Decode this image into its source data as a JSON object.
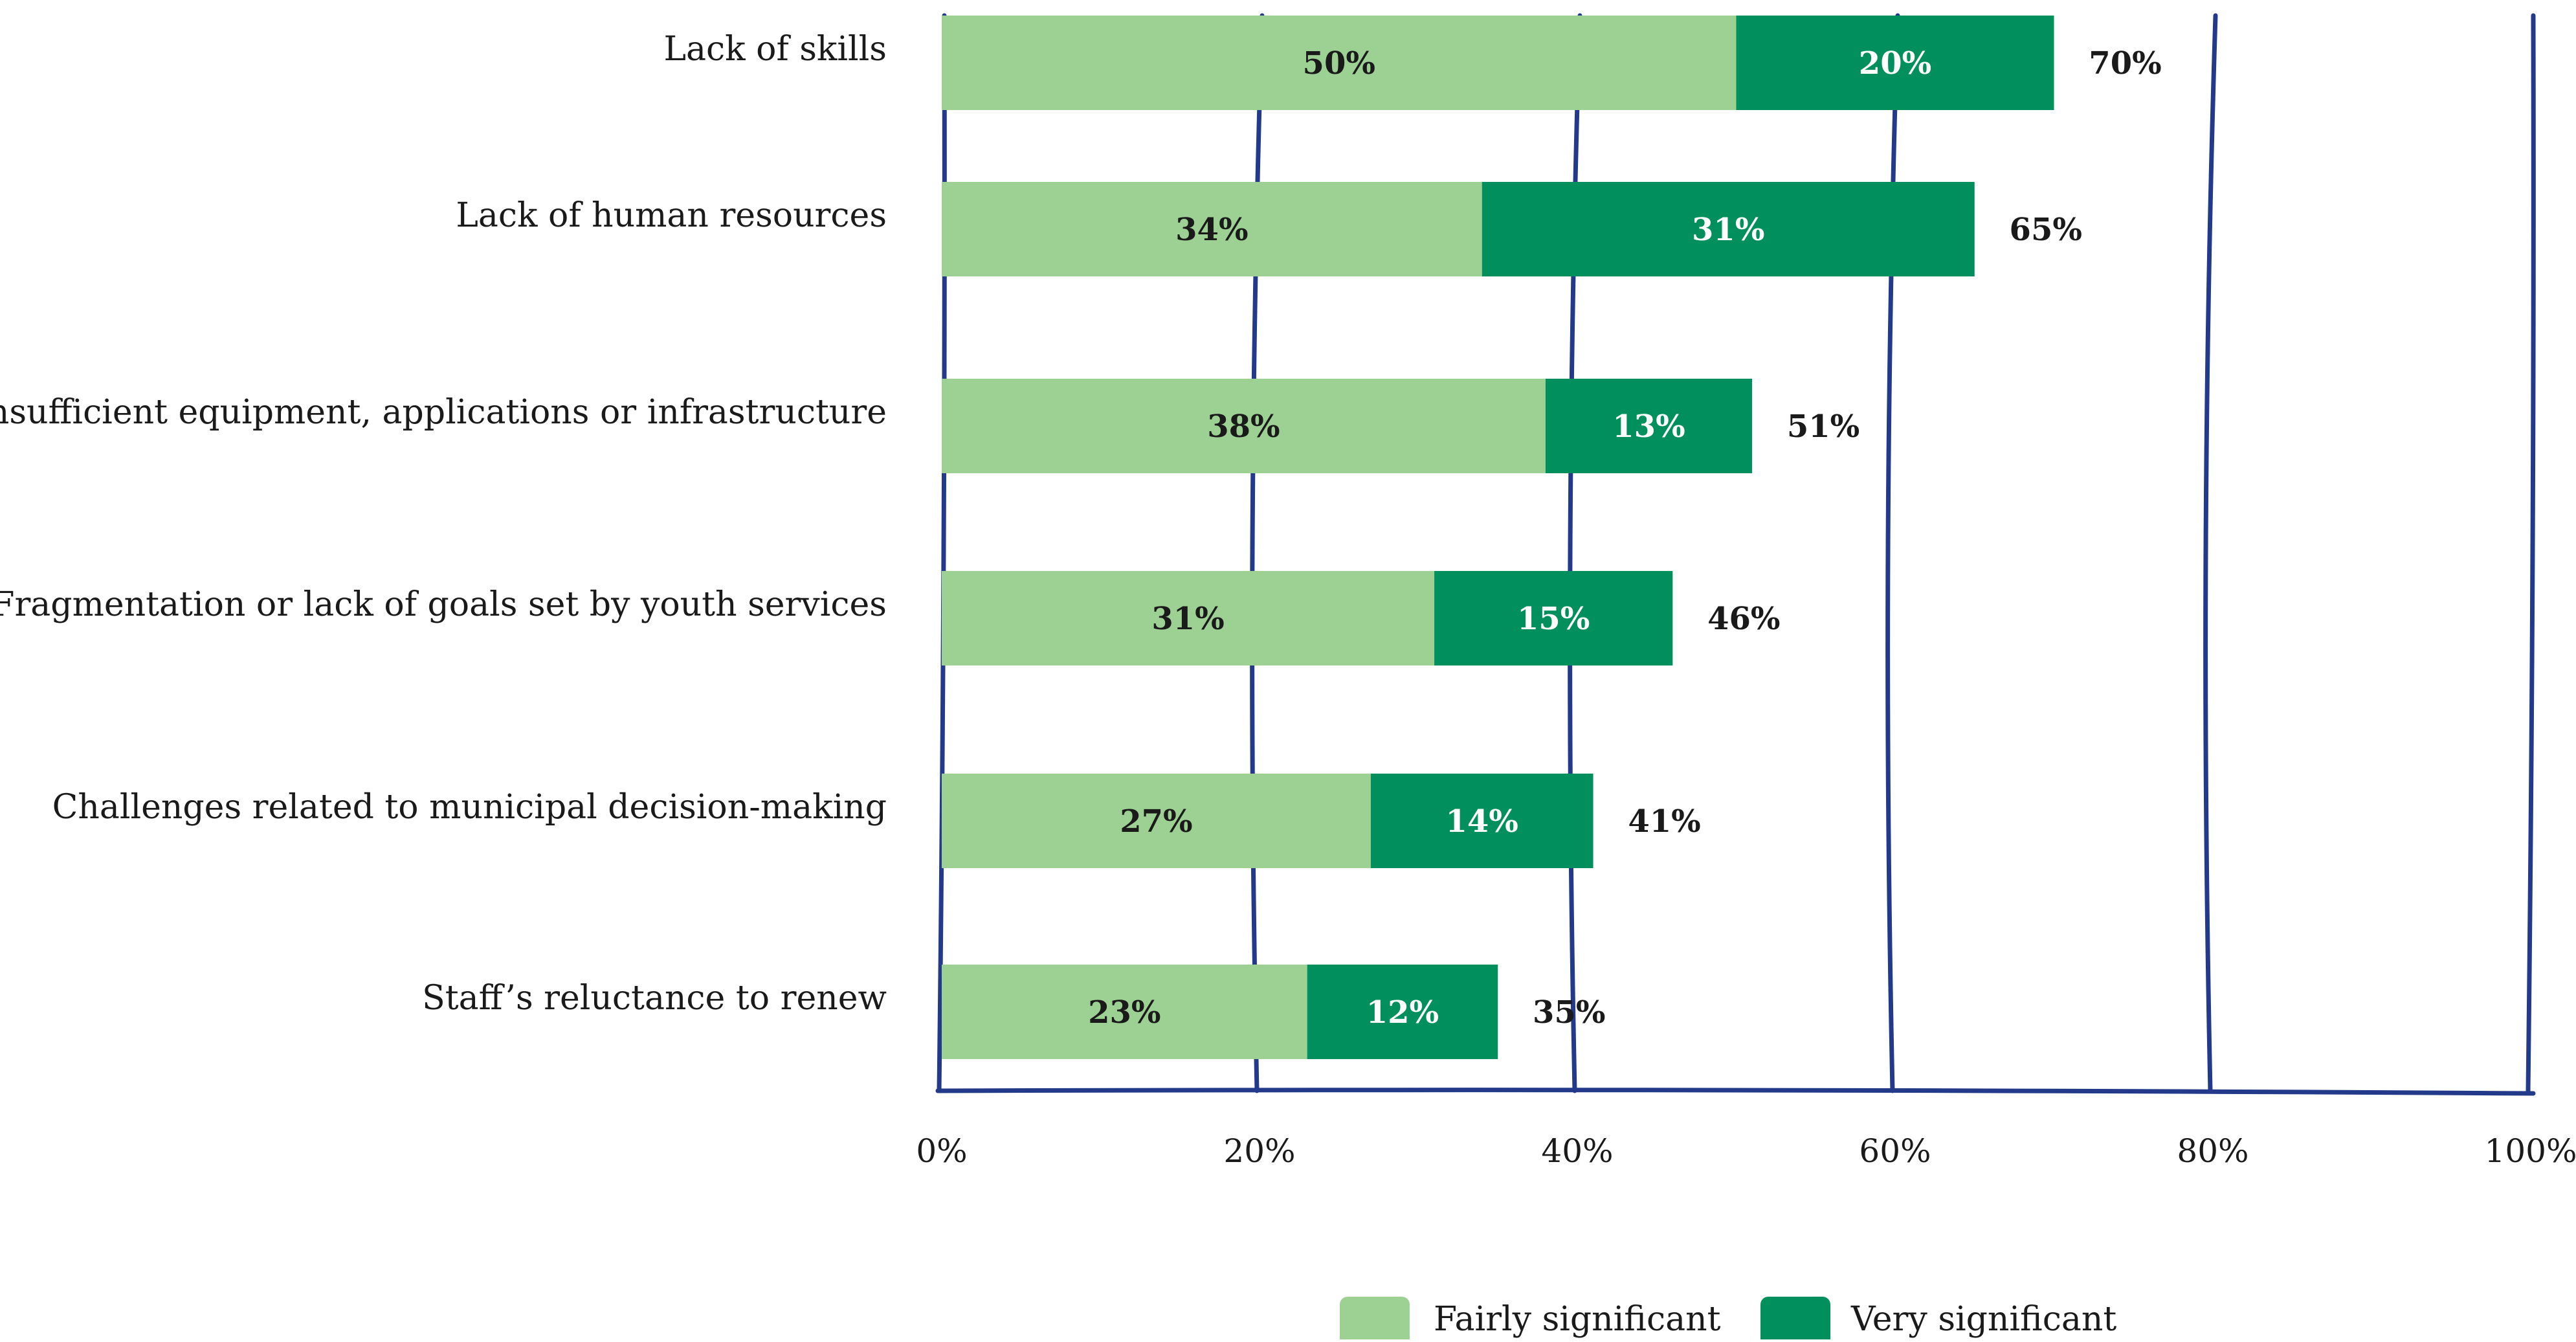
{
  "chart_data": {
    "type": "bar",
    "orientation": "horizontal",
    "stacked": true,
    "categories": [
      "Lack of skills",
      "Lack of human resources",
      "Insufficient equipment, applications or infrastructure",
      "Fragmentation or lack of goals set by youth services",
      "Challenges related to municipal decision-making",
      "Staff’s reluctance to renew"
    ],
    "series": [
      {
        "name": "Fairly significant",
        "values": [
          50,
          34,
          38,
          31,
          27,
          23
        ],
        "labels": [
          "50%",
          "34%",
          "38%",
          "31%",
          "27%",
          "23%"
        ],
        "color": "#9dd193"
      },
      {
        "name": "Very significant",
        "values": [
          20,
          31,
          13,
          15,
          14,
          12
        ],
        "labels": [
          "20%",
          "31%",
          "13%",
          "15%",
          "14%",
          "12%"
        ],
        "color": "#008f5d"
      }
    ],
    "totals": [
      70,
      65,
      51,
      46,
      41,
      35
    ],
    "total_labels": [
      "70%",
      "65%",
      "51%",
      "46%",
      "41%",
      "35%"
    ],
    "xlim": [
      0,
      100
    ],
    "x_ticks": [
      0,
      20,
      40,
      60,
      80,
      100
    ],
    "x_tick_labels": [
      "0%",
      "20%",
      "40%",
      "60%",
      "80%",
      "100%"
    ],
    "grid": true,
    "grid_color": "#233a8b",
    "legend_position": "bottom",
    "title": "",
    "xlabel": "",
    "ylabel": ""
  }
}
